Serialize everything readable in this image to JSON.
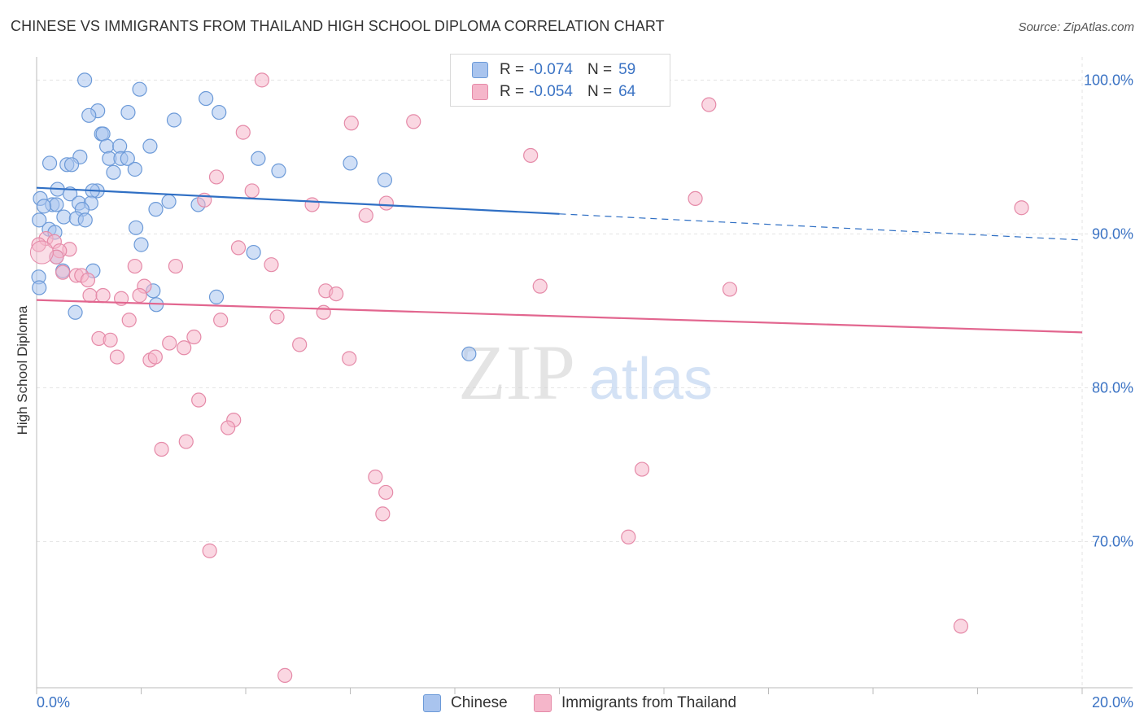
{
  "header": {
    "title": "CHINESE VS IMMIGRANTS FROM THAILAND HIGH SCHOOL DIPLOMA CORRELATION CHART",
    "source": "Source: ZipAtlas.com"
  },
  "watermark": {
    "zip": "ZIP",
    "atlas": "atlas"
  },
  "legend": {
    "rows": [
      {
        "r_label": "R =",
        "r_value": "-0.074",
        "n_label": "N =",
        "n_value": "59",
        "color": "#a9c4ee"
      },
      {
        "r_label": "R =",
        "r_value": "-0.054",
        "n_label": "N =",
        "n_value": "64",
        "color": "#f5b6ca"
      }
    ]
  },
  "bottom_legend": {
    "chinese": "Chinese",
    "thailand": "Immigrants from Thailand"
  },
  "colors": {
    "blue_fill": "#a9c4ee",
    "blue_stroke": "#6c9ad8",
    "blue_line": "#2f6fc4",
    "pink_fill": "#f5b6ca",
    "pink_stroke": "#e58aa8",
    "pink_line": "#e2668f",
    "axis_label": "#3b73c4",
    "grid": "#e3e3e3"
  },
  "chart_data": {
    "type": "scatter",
    "title": "CHINESE VS IMMIGRANTS FROM THAILAND HIGH SCHOOL DIPLOMA CORRELATION CHART",
    "xlabel": "",
    "ylabel": "High School Diploma",
    "xlim": [
      0,
      20
    ],
    "ylim": [
      60.5,
      101.5
    ],
    "x_tick_labels": [
      "0.0%",
      "20.0%"
    ],
    "y_ticks": [
      {
        "value": 100,
        "label": "100.0%"
      },
      {
        "value": 90,
        "label": "90.0%"
      },
      {
        "value": 80,
        "label": "80.0%"
      },
      {
        "value": 70,
        "label": "70.0%"
      }
    ],
    "grid": true,
    "legend_position": "top-center",
    "series": [
      {
        "name": "Chinese",
        "r": -0.074,
        "n": 59,
        "trend": {
          "x0": 0,
          "y0": 93.0,
          "x1": 10,
          "y1": 91.3,
          "dashed_to_x": 20,
          "dashed_to_y": 89.6
        },
        "points": [
          [
            0.92,
            100.0
          ],
          [
            1.97,
            99.4
          ],
          [
            3.24,
            98.8
          ],
          [
            1.17,
            98.0
          ],
          [
            1.75,
            97.9
          ],
          [
            3.49,
            97.9
          ],
          [
            1.0,
            97.7
          ],
          [
            2.63,
            97.4
          ],
          [
            1.24,
            96.5
          ],
          [
            1.27,
            96.5
          ],
          [
            1.34,
            95.7
          ],
          [
            1.59,
            95.7
          ],
          [
            2.17,
            95.7
          ],
          [
            0.83,
            95.0
          ],
          [
            1.39,
            94.9
          ],
          [
            1.61,
            94.9
          ],
          [
            1.74,
            94.9
          ],
          [
            4.24,
            94.9
          ],
          [
            6.0,
            94.6
          ],
          [
            0.25,
            94.6
          ],
          [
            0.58,
            94.5
          ],
          [
            0.67,
            94.5
          ],
          [
            1.47,
            94.0
          ],
          [
            1.88,
            94.2
          ],
          [
            4.63,
            94.1
          ],
          [
            6.66,
            93.5
          ],
          [
            0.4,
            92.9
          ],
          [
            1.16,
            92.8
          ],
          [
            0.64,
            92.6
          ],
          [
            1.07,
            92.8
          ],
          [
            0.07,
            92.3
          ],
          [
            2.53,
            92.1
          ],
          [
            0.3,
            91.9
          ],
          [
            0.38,
            91.9
          ],
          [
            0.81,
            92.0
          ],
          [
            1.04,
            92.0
          ],
          [
            3.09,
            91.9
          ],
          [
            0.14,
            91.8
          ],
          [
            2.28,
            91.6
          ],
          [
            0.87,
            91.6
          ],
          [
            0.52,
            91.1
          ],
          [
            0.76,
            91.0
          ],
          [
            0.05,
            90.9
          ],
          [
            0.93,
            90.9
          ],
          [
            1.9,
            90.4
          ],
          [
            0.24,
            90.3
          ],
          [
            0.35,
            90.1
          ],
          [
            2.0,
            89.3
          ],
          [
            4.15,
            88.8
          ],
          [
            0.38,
            88.5
          ],
          [
            1.08,
            87.6
          ],
          [
            0.5,
            87.6
          ],
          [
            0.04,
            87.2
          ],
          [
            2.23,
            86.3
          ],
          [
            3.44,
            85.9
          ],
          [
            2.29,
            85.4
          ],
          [
            0.74,
            84.9
          ],
          [
            8.27,
            82.2
          ],
          [
            0.05,
            86.5
          ]
        ]
      },
      {
        "name": "Immigrants from Thailand",
        "r": -0.054,
        "n": 64,
        "trend": {
          "x0": 0,
          "y0": 85.7,
          "x1": 20,
          "y1": 83.6
        },
        "points": [
          [
            4.31,
            100.0
          ],
          [
            12.86,
            98.4
          ],
          [
            7.21,
            97.3
          ],
          [
            6.02,
            97.2
          ],
          [
            3.95,
            96.6
          ],
          [
            9.45,
            95.1
          ],
          [
            3.44,
            93.7
          ],
          [
            4.12,
            92.8
          ],
          [
            3.21,
            92.2
          ],
          [
            12.6,
            92.3
          ],
          [
            6.69,
            92.0
          ],
          [
            5.27,
            91.9
          ],
          [
            18.84,
            91.7
          ],
          [
            6.3,
            91.2
          ],
          [
            0.18,
            89.7
          ],
          [
            0.34,
            89.5
          ],
          [
            0.04,
            89.3
          ],
          [
            0.63,
            89.0
          ],
          [
            0.44,
            88.9
          ],
          [
            3.86,
            89.1
          ],
          [
            0.38,
            88.5
          ],
          [
            1.88,
            87.9
          ],
          [
            2.66,
            87.9
          ],
          [
            4.49,
            88.0
          ],
          [
            0.5,
            87.5
          ],
          [
            0.76,
            87.3
          ],
          [
            0.86,
            87.3
          ],
          [
            0.98,
            87.0
          ],
          [
            2.06,
            86.6
          ],
          [
            1.02,
            86.0
          ],
          [
            1.27,
            86.0
          ],
          [
            1.62,
            85.8
          ],
          [
            1.97,
            86.0
          ],
          [
            5.53,
            86.3
          ],
          [
            5.73,
            86.1
          ],
          [
            9.63,
            86.6
          ],
          [
            13.26,
            86.4
          ],
          [
            5.49,
            84.9
          ],
          [
            1.77,
            84.4
          ],
          [
            3.52,
            84.4
          ],
          [
            4.6,
            84.6
          ],
          [
            1.19,
            83.2
          ],
          [
            1.41,
            83.1
          ],
          [
            2.54,
            82.9
          ],
          [
            3.01,
            83.3
          ],
          [
            2.82,
            82.6
          ],
          [
            5.03,
            82.8
          ],
          [
            1.54,
            82.0
          ],
          [
            2.17,
            81.8
          ],
          [
            2.27,
            82.0
          ],
          [
            5.98,
            81.9
          ],
          [
            3.1,
            79.2
          ],
          [
            3.77,
            77.9
          ],
          [
            3.66,
            77.4
          ],
          [
            2.86,
            76.5
          ],
          [
            2.39,
            76.0
          ],
          [
            11.58,
            74.7
          ],
          [
            6.48,
            74.2
          ],
          [
            6.68,
            73.2
          ],
          [
            6.62,
            71.8
          ],
          [
            11.32,
            70.3
          ],
          [
            3.31,
            69.4
          ],
          [
            17.68,
            64.5
          ],
          [
            4.75,
            61.3
          ]
        ]
      }
    ]
  }
}
